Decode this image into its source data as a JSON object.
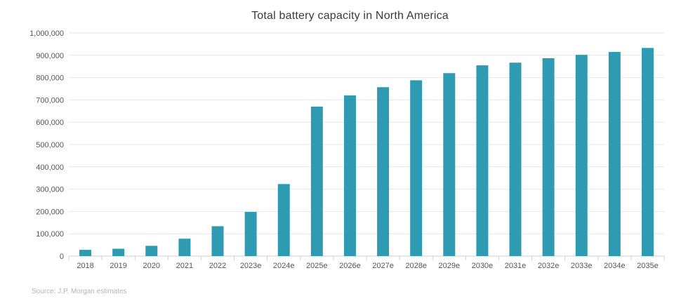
{
  "chart_data": {
    "type": "bar",
    "title": "Total battery capacity in North America",
    "xlabel": "",
    "ylabel": "",
    "ylim": [
      0,
      1000000
    ],
    "yticks": [
      "0",
      "100,000",
      "200,000",
      "300,000",
      "400,000",
      "500,000",
      "600,000",
      "700,000",
      "800,000",
      "900,000",
      "1,000,000"
    ],
    "categories": [
      "2018",
      "2019",
      "2020",
      "2021",
      "2022",
      "2023e",
      "2024e",
      "2025e",
      "2026e",
      "2027e",
      "2028e",
      "2029e",
      "2030e",
      "2031e",
      "2032e",
      "2033e",
      "2034e",
      "2035e"
    ],
    "values": [
      28000,
      33000,
      46000,
      78000,
      134000,
      198000,
      323000,
      670000,
      720000,
      757000,
      788000,
      820000,
      855000,
      867000,
      887000,
      902000,
      915000,
      933000
    ],
    "bar_color": "#2e9bb3",
    "grid": true,
    "source": "Source: J.P. Morgan estimates"
  }
}
